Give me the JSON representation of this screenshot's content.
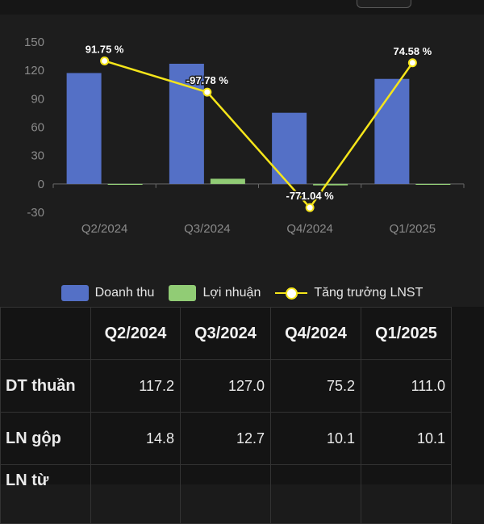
{
  "chart_data": {
    "type": "bar",
    "categories": [
      "Q2/2024",
      "Q3/2024",
      "Q4/2024",
      "Q1/2025"
    ],
    "series": [
      {
        "name": "Doanh thu",
        "type": "bar",
        "values": [
          117.2,
          127.0,
          75.2,
          111.0
        ],
        "color": "#5470c6"
      },
      {
        "name": "Lợi nhuận",
        "type": "bar",
        "values": [
          -1.0,
          5.5,
          -1.5,
          -1.0
        ],
        "color": "#91cc75"
      },
      {
        "name": "Tăng trưởng LNST",
        "type": "line",
        "values": [
          130,
          97,
          -25,
          128
        ],
        "labels": [
          "91.75 %",
          "-97.78 %",
          "-771.04 %",
          "74.58 %"
        ],
        "color": "#f5e51a"
      }
    ],
    "yticks": [
      "150",
      "120",
      "90",
      "60",
      "30",
      "0",
      "-30"
    ],
    "ylim": [
      -30,
      150
    ],
    "grid": false,
    "legend_position": "bottom"
  },
  "legend": {
    "revenue": "Doanh thu",
    "profit": "Lợi nhuận",
    "growth": "Tăng trưởng LNST"
  },
  "table": {
    "headers": [
      "",
      "Q2/2024",
      "Q3/2024",
      "Q4/2024",
      "Q1/2025"
    ],
    "rows": [
      {
        "label": "DT thuần",
        "values": [
          "117.2",
          "127.0",
          "75.2",
          "111.0"
        ]
      },
      {
        "label": "LN gộp",
        "values": [
          "14.8",
          "12.7",
          "10.1",
          "10.1"
        ]
      },
      {
        "label": "LN từ",
        "values": [
          "",
          "",
          "",
          ""
        ]
      }
    ]
  }
}
